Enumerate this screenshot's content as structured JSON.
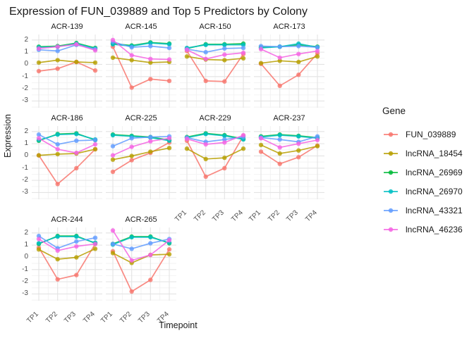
{
  "chart_data": {
    "type": "line",
    "title": "Expression of FUN_039889 and Top 5 Predictors by Colony",
    "xlabel": "Timepoint",
    "ylabel": "Expression",
    "x_categories": [
      "TP1",
      "TP2",
      "TP3",
      "TP4"
    ],
    "y_ticks": [
      2,
      1,
      0,
      -1,
      -2,
      -3
    ],
    "ylim": [
      -3.55,
      2.45
    ],
    "grid": "on",
    "legend_position": "right",
    "legend": {
      "title": "Gene",
      "entries": [
        {
          "name": "FUN_039889",
          "color": "#F8766D"
        },
        {
          "name": "lncRNA_18454",
          "color": "#B79F00"
        },
        {
          "name": "lncRNA_26969",
          "color": "#00BA38"
        },
        {
          "name": "lncRNA_26970",
          "color": "#00BFC4"
        },
        {
          "name": "lncRNA_43321",
          "color": "#619CFF"
        },
        {
          "name": "lncRNA_46236",
          "color": "#F564E3"
        }
      ]
    },
    "facets": [
      {
        "label": "ACR-139",
        "show_y": true,
        "show_x": false,
        "series": [
          {
            "name": "FUN_039889",
            "values": [
              -0.55,
              -0.35,
              0.2,
              -0.5
            ]
          },
          {
            "name": "lncRNA_18454",
            "values": [
              0.15,
              0.35,
              0.2,
              0.15
            ]
          },
          {
            "name": "lncRNA_26969",
            "values": [
              1.45,
              1.5,
              1.75,
              1.35
            ]
          },
          {
            "name": "lncRNA_26970",
            "values": [
              1.4,
              1.45,
              1.7,
              1.3
            ]
          },
          {
            "name": "lncRNA_43321",
            "values": [
              1.2,
              1.1,
              1.6,
              1.25
            ]
          },
          {
            "name": "lncRNA_46236",
            "values": [
              1.3,
              1.45,
              1.65,
              1.15
            ]
          }
        ]
      },
      {
        "label": "ACR-145",
        "show_y": false,
        "show_x": false,
        "series": [
          {
            "name": "FUN_039889",
            "values": [
              1.45,
              -1.9,
              -1.2,
              -1.35
            ]
          },
          {
            "name": "lncRNA_18454",
            "values": [
              0.55,
              0.35,
              0.15,
              0.2
            ]
          },
          {
            "name": "lncRNA_26969",
            "values": [
              1.7,
              1.55,
              1.8,
              1.7
            ]
          },
          {
            "name": "lncRNA_26970",
            "values": [
              1.65,
              1.5,
              1.75,
              1.65
            ]
          },
          {
            "name": "lncRNA_43321",
            "values": [
              1.85,
              1.4,
              1.5,
              1.35
            ]
          },
          {
            "name": "lncRNA_46236",
            "values": [
              2.0,
              0.75,
              0.45,
              0.4
            ]
          }
        ]
      },
      {
        "label": "ACR-150",
        "show_y": false,
        "show_x": false,
        "series": [
          {
            "name": "FUN_039889",
            "values": [
              1.1,
              -1.35,
              -1.4,
              0.85
            ]
          },
          {
            "name": "lncRNA_18454",
            "values": [
              0.65,
              0.4,
              0.35,
              0.5
            ]
          },
          {
            "name": "lncRNA_26969",
            "values": [
              1.3,
              1.65,
              1.65,
              1.7
            ]
          },
          {
            "name": "lncRNA_26970",
            "values": [
              1.35,
              1.6,
              1.6,
              1.6
            ]
          },
          {
            "name": "lncRNA_43321",
            "values": [
              1.25,
              1.0,
              1.3,
              1.35
            ]
          },
          {
            "name": "lncRNA_46236",
            "values": [
              1.2,
              0.45,
              0.8,
              0.95
            ]
          }
        ]
      },
      {
        "label": "ACR-173",
        "show_y": false,
        "show_x": false,
        "series": [
          {
            "name": "FUN_039889",
            "values": [
              0.05,
              -1.75,
              -0.85,
              0.9
            ]
          },
          {
            "name": "lncRNA_18454",
            "values": [
              0.1,
              0.3,
              0.2,
              0.65
            ]
          },
          {
            "name": "lncRNA_26969",
            "values": [
              1.4,
              1.45,
              1.6,
              1.45
            ]
          },
          {
            "name": "lncRNA_26970",
            "values": [
              1.35,
              1.45,
              1.7,
              1.4
            ]
          },
          {
            "name": "lncRNA_43321",
            "values": [
              1.5,
              1.45,
              1.5,
              1.4
            ]
          },
          {
            "name": "lncRNA_46236",
            "values": [
              1.25,
              0.55,
              0.85,
              1.1
            ]
          }
        ]
      },
      {
        "label": "ACR-186",
        "show_y": true,
        "show_x": false,
        "series": [
          {
            "name": "FUN_039889",
            "values": [
              0.05,
              -2.3,
              -1.0,
              0.55
            ]
          },
          {
            "name": "lncRNA_18454",
            "values": [
              0.05,
              0.15,
              0.2,
              0.55
            ]
          },
          {
            "name": "lncRNA_26969",
            "values": [
              1.25,
              1.8,
              1.85,
              1.3
            ]
          },
          {
            "name": "lncRNA_26970",
            "values": [
              1.3,
              1.75,
              1.8,
              1.35
            ]
          },
          {
            "name": "lncRNA_43321",
            "values": [
              1.75,
              0.95,
              1.25,
              1.3
            ]
          },
          {
            "name": "lncRNA_46236",
            "values": [
              1.45,
              0.55,
              0.25,
              0.95
            ]
          }
        ]
      },
      {
        "label": "ACR-225",
        "show_y": false,
        "show_x": false,
        "series": [
          {
            "name": "FUN_039889",
            "values": [
              -1.3,
              -0.35,
              0.25,
              1.1
            ]
          },
          {
            "name": "lncRNA_18454",
            "values": [
              -0.3,
              0.0,
              0.35,
              0.65
            ]
          },
          {
            "name": "lncRNA_26969",
            "values": [
              1.75,
              1.65,
              1.55,
              1.3
            ]
          },
          {
            "name": "lncRNA_26970",
            "values": [
              1.7,
              1.6,
              1.5,
              1.25
            ]
          },
          {
            "name": "lncRNA_43321",
            "values": [
              0.8,
              1.45,
              1.55,
              1.6
            ]
          },
          {
            "name": "lncRNA_46236",
            "values": [
              0.05,
              0.75,
              1.2,
              1.45
            ]
          }
        ]
      },
      {
        "label": "ACR-229",
        "show_y": false,
        "show_x": true,
        "series": [
          {
            "name": "FUN_039889",
            "values": [
              1.25,
              -1.7,
              -1.0,
              1.65
            ]
          },
          {
            "name": "lncRNA_18454",
            "values": [
              0.6,
              -0.25,
              -0.15,
              0.6
            ]
          },
          {
            "name": "lncRNA_26969",
            "values": [
              1.55,
              1.85,
              1.7,
              1.4
            ]
          },
          {
            "name": "lncRNA_26970",
            "values": [
              1.5,
              1.8,
              1.65,
              1.35
            ]
          },
          {
            "name": "lncRNA_43321",
            "values": [
              1.5,
              1.15,
              1.35,
              1.55
            ]
          },
          {
            "name": "lncRNA_46236",
            "values": [
              1.4,
              0.95,
              1.1,
              1.7
            ]
          }
        ]
      },
      {
        "label": "ACR-237",
        "show_y": false,
        "show_x": true,
        "series": [
          {
            "name": "FUN_039889",
            "values": [
              0.35,
              -0.65,
              -0.1,
              0.85
            ]
          },
          {
            "name": "lncRNA_18454",
            "values": [
              0.9,
              0.2,
              0.45,
              0.8
            ]
          },
          {
            "name": "lncRNA_26969",
            "values": [
              1.6,
              1.75,
              1.65,
              1.5
            ]
          },
          {
            "name": "lncRNA_26970",
            "values": [
              1.55,
              1.7,
              1.6,
              1.45
            ]
          },
          {
            "name": "lncRNA_43321",
            "values": [
              1.5,
              1.35,
              1.15,
              1.6
            ]
          },
          {
            "name": "lncRNA_46236",
            "values": [
              1.45,
              0.7,
              1.0,
              1.3
            ]
          }
        ]
      },
      {
        "label": "ACR-244",
        "show_y": true,
        "show_x": true,
        "series": [
          {
            "name": "FUN_039889",
            "values": [
              0.8,
              -1.8,
              -1.45,
              1.1
            ]
          },
          {
            "name": "lncRNA_18454",
            "values": [
              0.65,
              -0.15,
              0.0,
              0.7
            ]
          },
          {
            "name": "lncRNA_26969",
            "values": [
              1.1,
              1.75,
              1.75,
              1.15
            ]
          },
          {
            "name": "lncRNA_26970",
            "values": [
              1.15,
              1.7,
              1.7,
              1.2
            ]
          },
          {
            "name": "lncRNA_43321",
            "values": [
              1.75,
              0.75,
              1.3,
              1.6
            ]
          },
          {
            "name": "lncRNA_46236",
            "values": [
              1.5,
              0.55,
              0.9,
              1.1
            ]
          }
        ]
      },
      {
        "label": "ACR-265",
        "show_y": false,
        "show_x": true,
        "series": [
          {
            "name": "FUN_039889",
            "values": [
              0.5,
              -2.8,
              -1.85,
              0.65
            ]
          },
          {
            "name": "lncRNA_18454",
            "values": [
              0.35,
              -0.45,
              0.2,
              0.25
            ]
          },
          {
            "name": "lncRNA_26969",
            "values": [
              1.1,
              1.7,
              1.7,
              1.15
            ]
          },
          {
            "name": "lncRNA_26970",
            "values": [
              1.05,
              1.65,
              1.65,
              1.2
            ]
          },
          {
            "name": "lncRNA_43321",
            "values": [
              1.1,
              0.7,
              1.15,
              1.5
            ]
          },
          {
            "name": "lncRNA_46236",
            "values": [
              2.2,
              -0.25,
              0.2,
              1.4
            ]
          }
        ]
      }
    ]
  }
}
